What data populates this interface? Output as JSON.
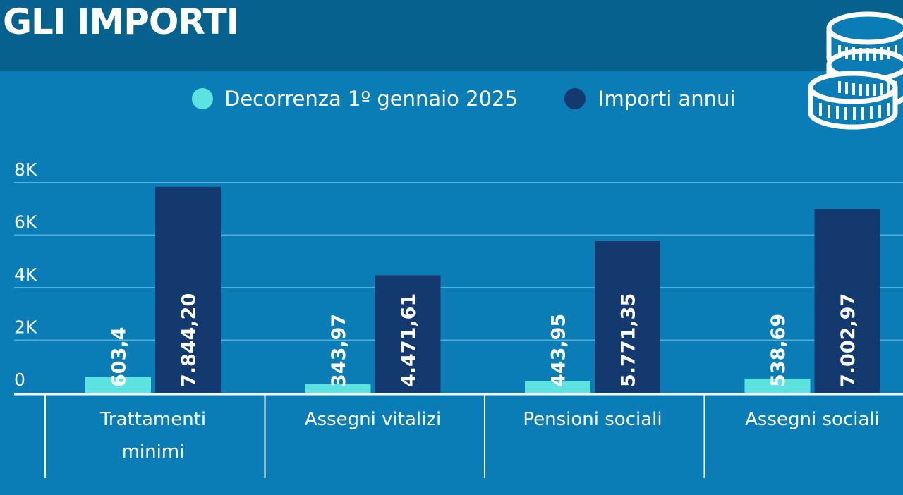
{
  "header": {
    "title": "GLI IMPORTI"
  },
  "icon": "coins-stack-icon",
  "colors": {
    "background": "#0a7db6",
    "header": "#07618f",
    "series_1": "#5de3df",
    "series_2": "#14396e",
    "grid": "#4fb0dc"
  },
  "chart_data": {
    "type": "bar",
    "categories": [
      "Trattamenti minimi",
      "Assegni vitalizi",
      "Pensioni sociali",
      "Assegni sociali"
    ],
    "category_lines": [
      [
        "Trattamenti",
        "minimi"
      ],
      [
        "Assegni vitalizi"
      ],
      [
        "Pensioni sociali"
      ],
      [
        "Assegni sociali"
      ]
    ],
    "series": [
      {
        "name": "Decorrenza 1º gennaio 2025",
        "values": [
          603.4,
          343.97,
          443.95,
          538.69
        ],
        "labels": [
          "603,4",
          "343,97",
          "443,95",
          "538,69"
        ]
      },
      {
        "name": "Importi annui",
        "values": [
          7844.2,
          4471.61,
          5771.35,
          7002.97
        ],
        "labels": [
          "7.844,20",
          "4.471,61",
          "5.771,35",
          "7.002,97"
        ]
      }
    ],
    "yticks": [
      0,
      2000,
      4000,
      6000,
      8000
    ],
    "ytick_labels": [
      "0",
      "2K",
      "4K",
      "6K",
      "8K"
    ],
    "ylim": [
      0,
      8000
    ],
    "legend_position": "top",
    "grid": true
  }
}
